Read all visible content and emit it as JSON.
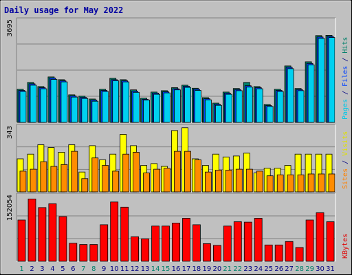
{
  "chart_data": [
    {
      "type": "bar",
      "panel": "hits-files-pages",
      "title": "Daily usage for May 2022",
      "ymax_label": "3695",
      "ylim": [
        0,
        3695
      ],
      "side_label": [
        {
          "text": "Pages",
          "color": "#00c8e8"
        },
        {
          "text": " / ",
          "color": "#000080"
        },
        {
          "text": "Files",
          "color": "#0040ff"
        },
        {
          "text": " / ",
          "color": "#000080"
        },
        {
          "text": "Hits",
          "color": "#00806a"
        }
      ],
      "series": [
        {
          "name": "Hits",
          "color": "#00806a",
          "values": [
            1200,
            1450,
            1300,
            1650,
            1550,
            1000,
            950,
            850,
            1200,
            1600,
            1550,
            1180,
            880,
            1100,
            1150,
            1260,
            1350,
            1240,
            900,
            700,
            1100,
            1230,
            1450,
            1300,
            650,
            1200,
            2050,
            1230,
            2200,
            3150,
            3160
          ]
        },
        {
          "name": "Files",
          "color": "#0040ff",
          "values": [
            1160,
            1400,
            1260,
            1610,
            1510,
            960,
            910,
            810,
            1160,
            1550,
            1510,
            1130,
            840,
            1060,
            1110,
            1220,
            1310,
            1200,
            860,
            660,
            1060,
            1190,
            1330,
            1260,
            610,
            1160,
            2000,
            1190,
            2140,
            3100,
            3120
          ]
        },
        {
          "name": "Pages",
          "color": "#00d0f0",
          "values": [
            1120,
            1350,
            1220,
            1560,
            1470,
            920,
            870,
            770,
            1120,
            1510,
            1470,
            1090,
            810,
            1020,
            1070,
            1180,
            1270,
            1160,
            820,
            620,
            1020,
            1150,
            1280,
            1220,
            580,
            1120,
            1950,
            1150,
            2090,
            3050,
            3080
          ]
        }
      ]
    },
    {
      "type": "bar",
      "panel": "visits-sites",
      "ymax_label": "343",
      "ylim": [
        0,
        343
      ],
      "side_label": [
        {
          "text": "Sites",
          "color": "#ff8000"
        },
        {
          "text": " / ",
          "color": "#000080"
        },
        {
          "text": "Visits",
          "color": "#e0e000"
        }
      ],
      "series": [
        {
          "name": "Visits",
          "color": "#ffff00",
          "values": [
            175,
            200,
            250,
            235,
            210,
            250,
            105,
            245,
            170,
            200,
            305,
            245,
            140,
            150,
            135,
            325,
            340,
            175,
            140,
            200,
            185,
            190,
            205,
            100,
            125,
            125,
            140,
            200,
            200,
            200,
            200
          ]
        },
        {
          "name": "Sites",
          "color": "#ff8c00",
          "values": [
            110,
            120,
            160,
            135,
            145,
            215,
            70,
            180,
            140,
            110,
            200,
            210,
            100,
            120,
            125,
            215,
            215,
            170,
            105,
            115,
            115,
            120,
            120,
            110,
            85,
            90,
            90,
            90,
            95,
            95,
            95
          ]
        }
      ]
    },
    {
      "type": "bar",
      "panel": "kbytes",
      "ymax_label": "152054",
      "ylim": [
        0,
        152054
      ],
      "side_label": [
        {
          "text": "KBytes",
          "color": "#e00000"
        }
      ],
      "x_labels": [
        "1",
        "2",
        "3",
        "4",
        "5",
        "6",
        "7",
        "8",
        "9",
        "10",
        "11",
        "12",
        "13",
        "14",
        "15",
        "16",
        "17",
        "18",
        "19",
        "20",
        "21",
        "22",
        "23",
        "24",
        "25",
        "26",
        "27",
        "28",
        "29",
        "30",
        "31"
      ],
      "weekend_color": "#00806a",
      "weekday_color": "#000080",
      "weekend_days": [
        1,
        7,
        8,
        14,
        15,
        21,
        22,
        28,
        29
      ],
      "series": [
        {
          "name": "KBytes",
          "color": "#ff0000",
          "values": [
            96000,
            145000,
            125000,
            134000,
            104000,
            42000,
            39000,
            39000,
            85000,
            138000,
            126000,
            57000,
            52000,
            82000,
            82000,
            89000,
            100000,
            85000,
            41000,
            37000,
            82000,
            92000,
            91000,
            100000,
            38000,
            38000,
            46000,
            32000,
            96000,
            113000,
            92000
          ]
        }
      ]
    }
  ]
}
